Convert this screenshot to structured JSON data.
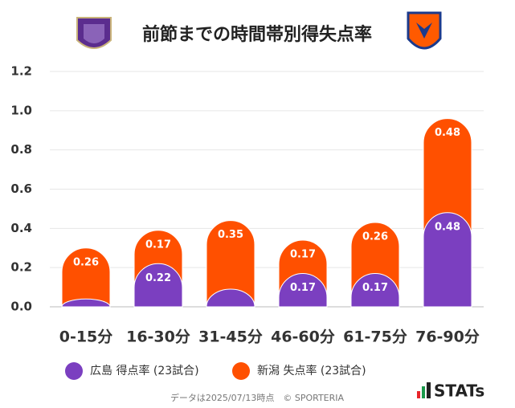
{
  "chart_data": {
    "type": "stacked_bar",
    "title": "前節までの時間帯別得失点率",
    "categories": [
      "0-15分",
      "16-30分",
      "31-45分",
      "46-60分",
      "61-75分",
      "76-90分"
    ],
    "series": [
      {
        "name": "広島 得点率 (23試合)",
        "color": "#7b3fc0",
        "values": [
          0.04,
          0.22,
          0.09,
          0.17,
          0.17,
          0.48
        ],
        "value_labels": [
          null,
          "0.22",
          null,
          "0.17",
          "0.17",
          "0.48"
        ]
      },
      {
        "name": "新潟 失点率 (23試合)",
        "color": "#ff5000",
        "values": [
          0.26,
          0.17,
          0.35,
          0.17,
          0.26,
          0.48
        ]
      }
    ],
    "ylim": [
      0,
      1.2
    ],
    "yticks": [
      {
        "value": 0,
        "label": "0.0"
      },
      0.2,
      0.4,
      0.6,
      0.8,
      {
        "value": 1,
        "label": "1.0"
      },
      1.2
    ],
    "grid": true
  },
  "footer": "データは2025/07/13時点　© SPORTERIA",
  "brand": "STATs"
}
